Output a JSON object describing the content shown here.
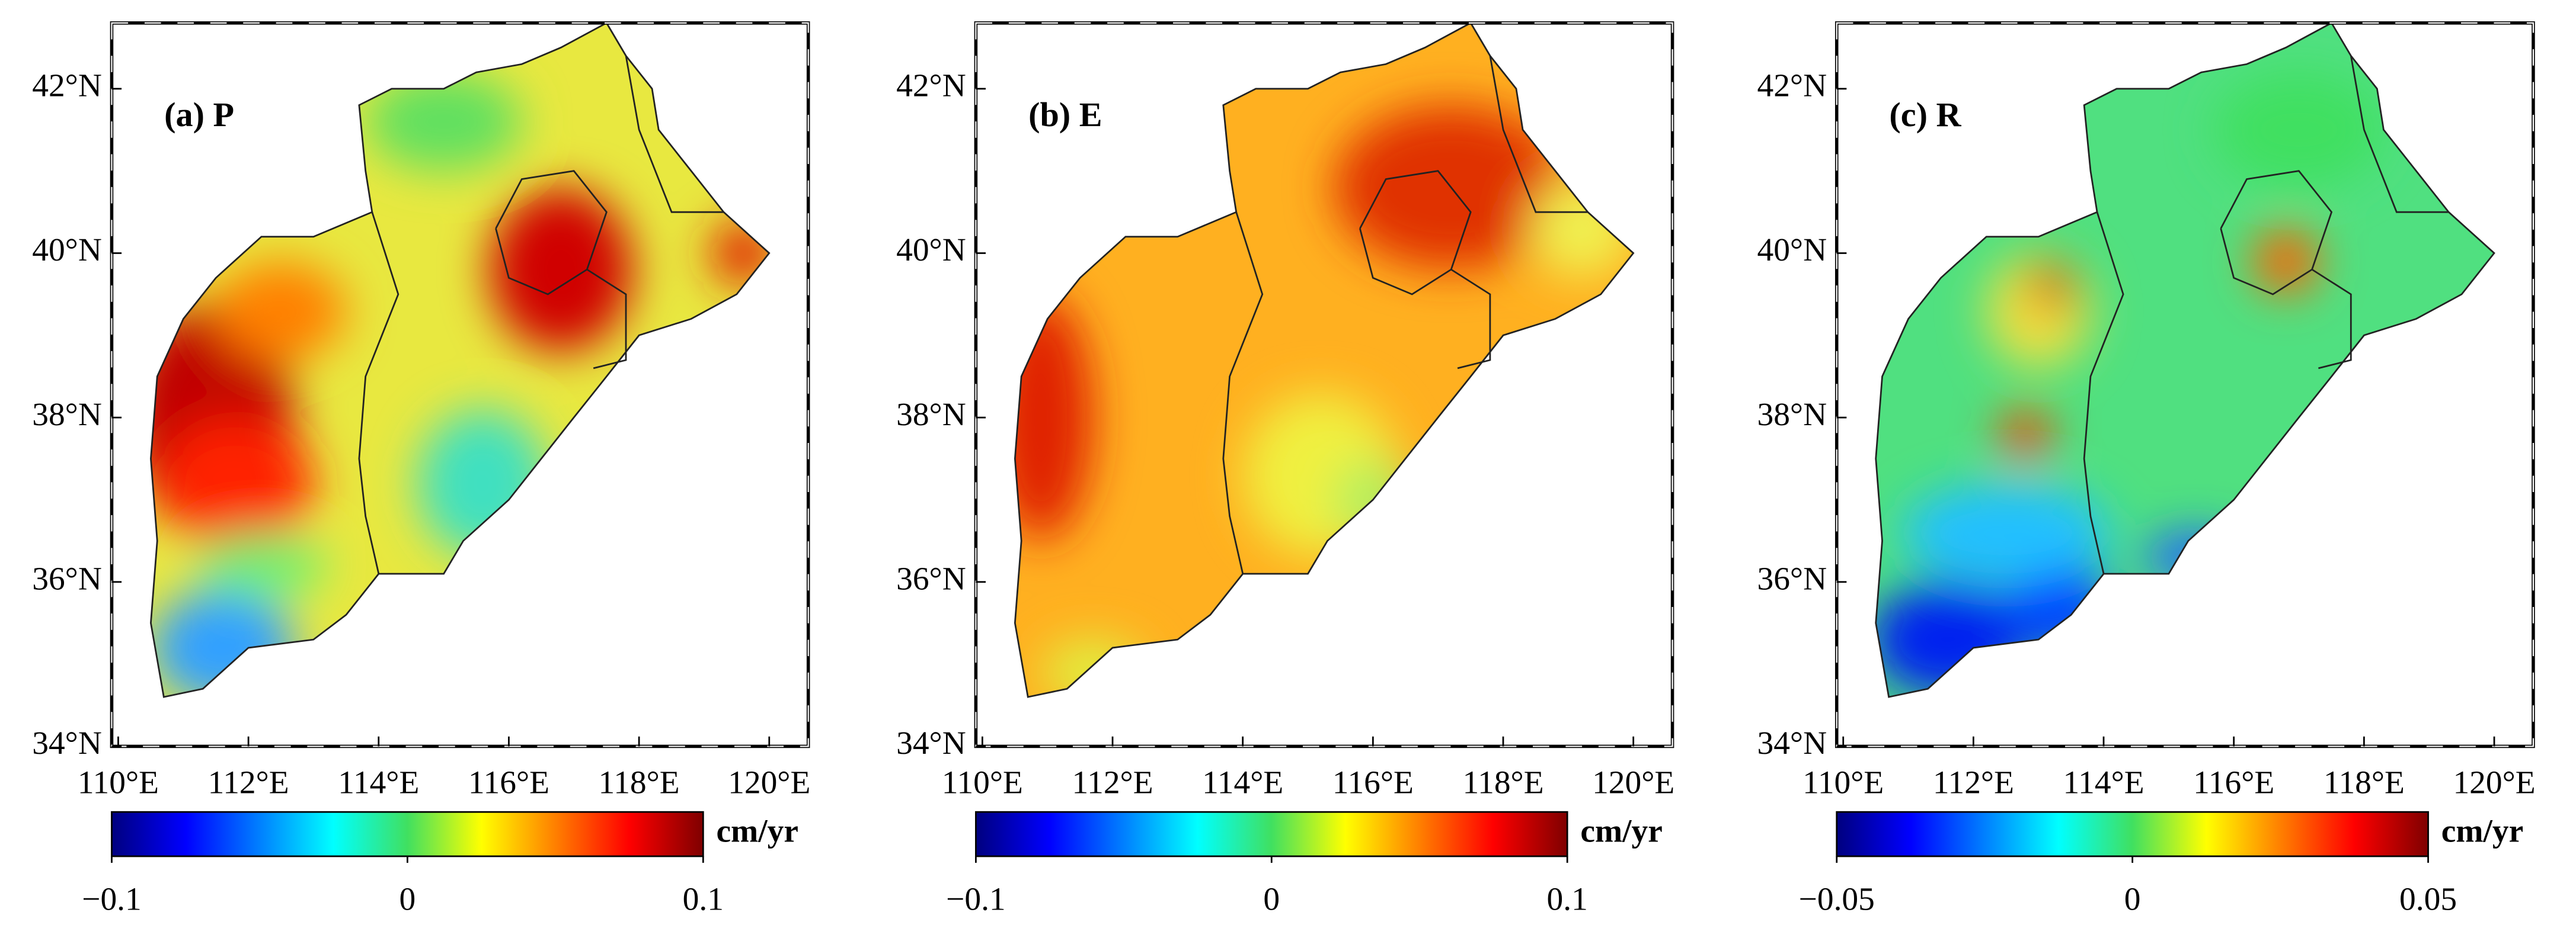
{
  "panels": [
    {
      "label": "(a) P",
      "lat_ticks": [
        {
          "value": 34,
          "label": "34°N"
        },
        {
          "value": 36,
          "label": "36°N"
        },
        {
          "value": 38,
          "label": "38°N"
        },
        {
          "value": 40,
          "label": "40°N"
        },
        {
          "value": 42,
          "label": "42°N"
        }
      ],
      "lon_ticks": [
        {
          "value": 110,
          "label": "110°E"
        },
        {
          "value": 112,
          "label": "112°E"
        },
        {
          "value": 114,
          "label": "114°E"
        },
        {
          "value": 116,
          "label": "116°E"
        },
        {
          "value": 118,
          "label": "118°E"
        },
        {
          "value": 120,
          "label": "120°E"
        }
      ],
      "colorbar": {
        "lim": [
          -0.1,
          0.1
        ],
        "ticks": [
          {
            "value": -0.1,
            "label": "−0.1"
          },
          0,
          0.1
        ],
        "unit": "cm/yr"
      }
    },
    {
      "label": "(b) E",
      "lat_ticks": [
        {
          "value": 34,
          "label": "34°N"
        },
        {
          "value": 36,
          "label": "36°N"
        },
        {
          "value": 38,
          "label": "38°N"
        },
        {
          "value": 40,
          "label": "40°N"
        },
        {
          "value": 42,
          "label": "42°N"
        }
      ],
      "lon_ticks": [
        {
          "value": 110,
          "label": "110°E"
        },
        {
          "value": 112,
          "label": "112°E"
        },
        {
          "value": 114,
          "label": "114°E"
        },
        {
          "value": 116,
          "label": "116°E"
        },
        {
          "value": 118,
          "label": "118°E"
        },
        {
          "value": 120,
          "label": "120°E"
        }
      ],
      "colorbar": {
        "lim": [
          -0.1,
          0.1
        ],
        "ticks": [
          {
            "value": -0.1,
            "label": "−0.1"
          },
          0,
          0.1
        ],
        "unit": "cm/yr"
      }
    },
    {
      "label": "(c) R",
      "lat_ticks": [
        {
          "value": 34,
          "label": "34°N"
        },
        {
          "value": 36,
          "label": "36°N"
        },
        {
          "value": 38,
          "label": "38°N"
        },
        {
          "value": 40,
          "label": "40°N"
        },
        {
          "value": 42,
          "label": "42°N"
        }
      ],
      "lon_ticks": [
        {
          "value": 110,
          "label": "110°E"
        },
        {
          "value": 112,
          "label": "112°E"
        },
        {
          "value": 114,
          "label": "114°E"
        },
        {
          "value": 116,
          "label": "116°E"
        },
        {
          "value": 118,
          "label": "118°E"
        },
        {
          "value": 120,
          "label": "120°E"
        }
      ],
      "colorbar": {
        "lim": [
          -0.05,
          0.05
        ],
        "ticks": [
          {
            "value": -0.05,
            "label": "−0.05"
          },
          0,
          0.05
        ],
        "unit": "cm/yr"
      }
    }
  ]
}
